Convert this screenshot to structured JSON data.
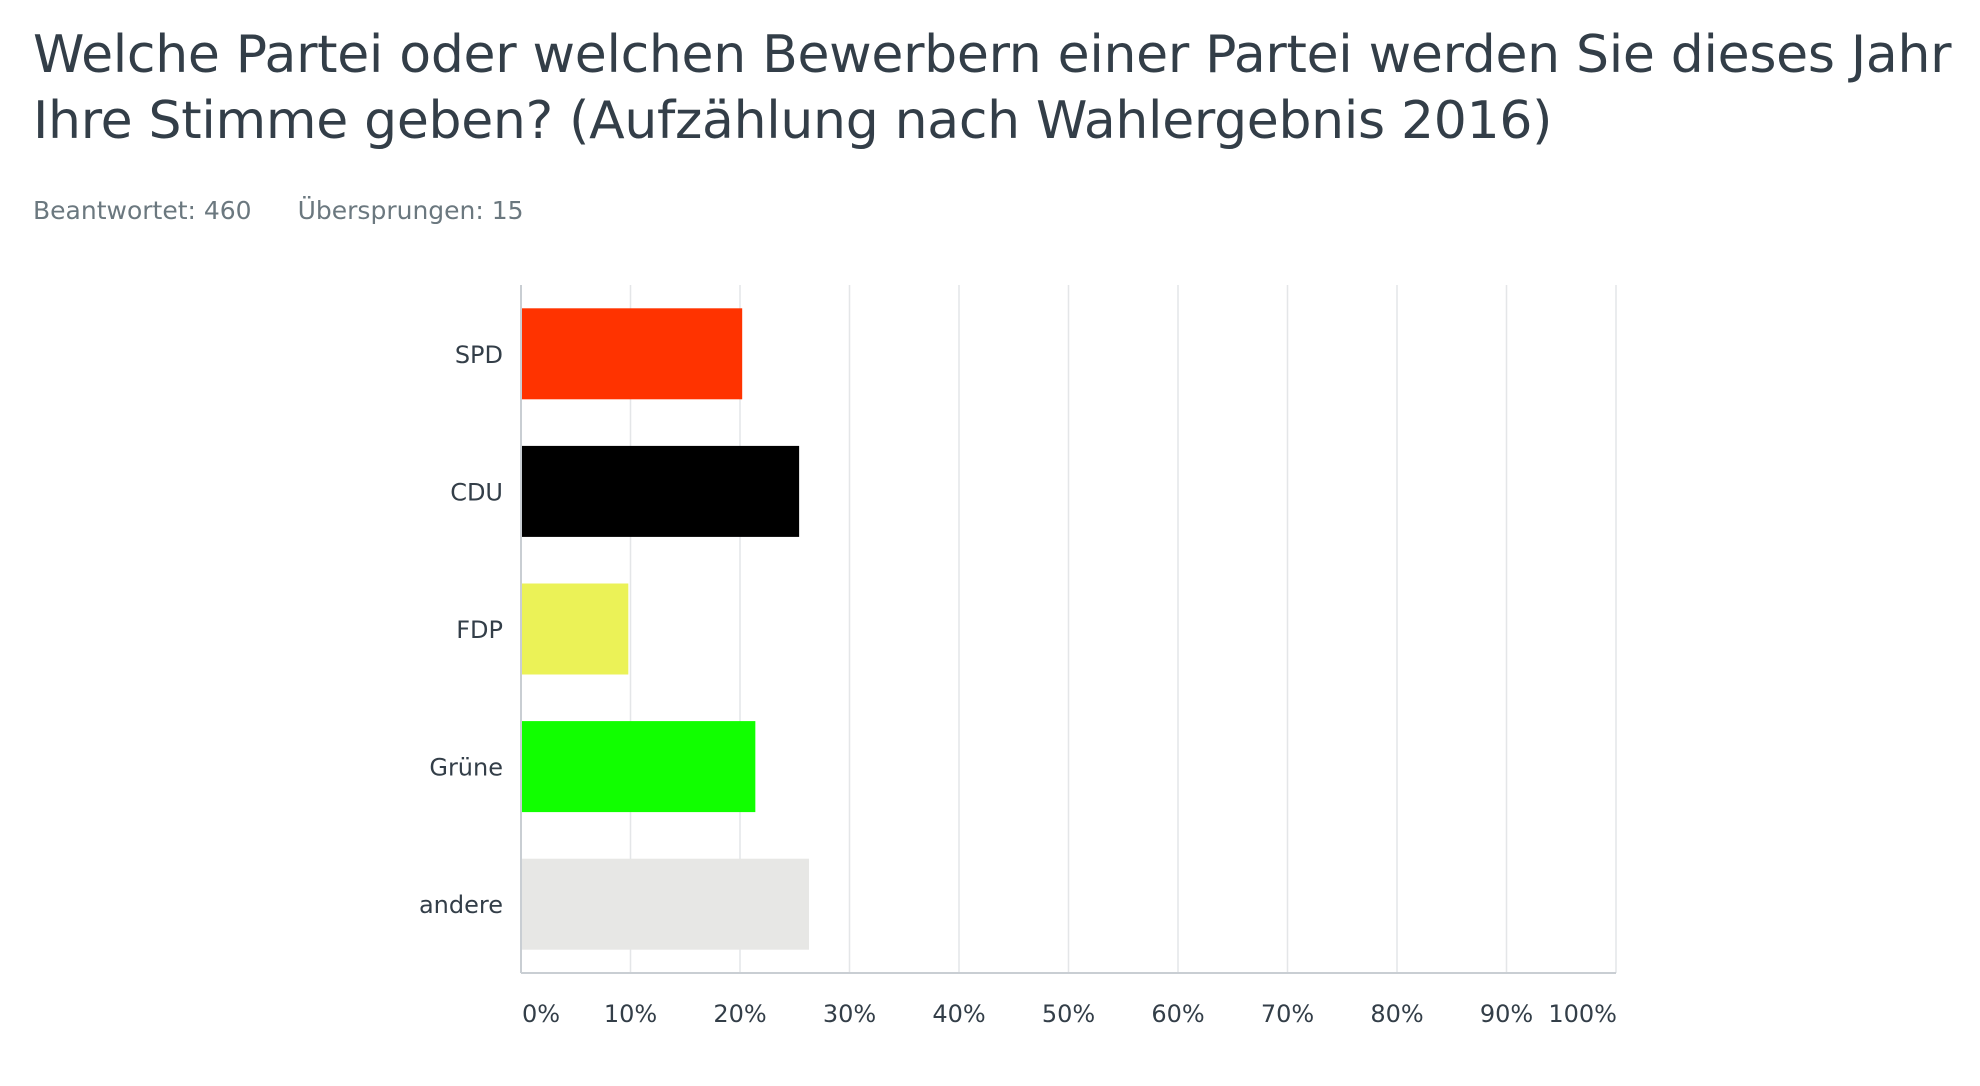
{
  "question": {
    "title": "Welche Partei oder welchen Bewerbern einer Partei werden Sie dieses Jahr Ihre Stimme geben? (Aufzählung nach Wahlergebnis 2016)",
    "answered_label": "Beantwortet: 460",
    "skipped_label": "Übersprungen: 15"
  },
  "chart_data": {
    "type": "bar",
    "orientation": "horizontal",
    "categories": [
      "SPD",
      "CDU",
      "FDP",
      "Grüne",
      "andere"
    ],
    "values": [
      20.2,
      25.4,
      9.8,
      21.4,
      26.3
    ],
    "colors": [
      "#ff3300",
      "#000000",
      "#ebf257",
      "#11ff00",
      "#e7e7e5"
    ],
    "xlim": [
      0,
      100
    ],
    "xticks": [
      "0%",
      "10%",
      "20%",
      "30%",
      "40%",
      "50%",
      "60%",
      "70%",
      "80%",
      "90%",
      "100%"
    ],
    "grid": true,
    "legend": "none"
  }
}
